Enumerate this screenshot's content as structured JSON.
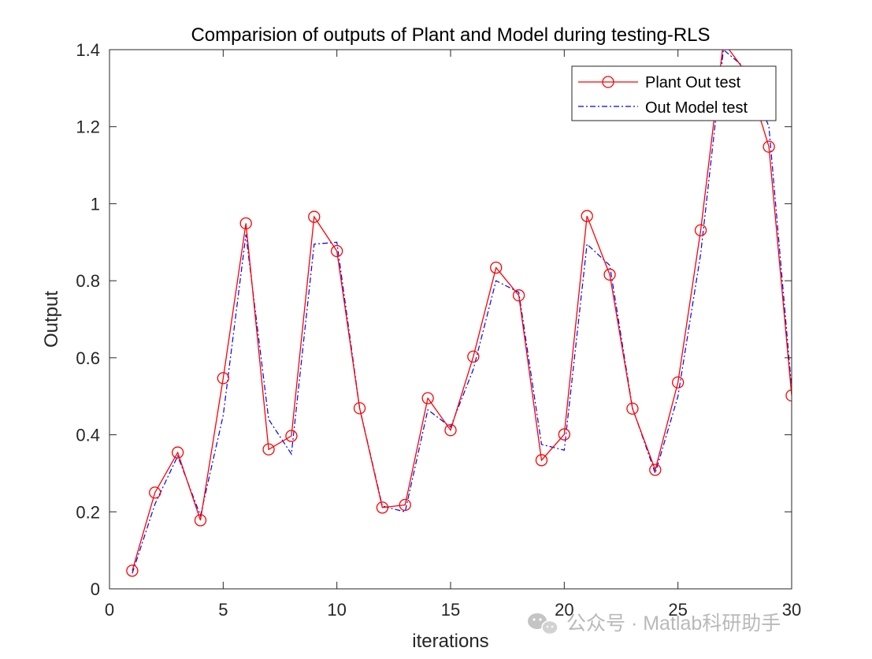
{
  "chart_data": {
    "type": "line",
    "title": "Comparision of outputs of Plant and Model during testing-RLS",
    "xlabel": "iterations",
    "ylabel": "Output",
    "xlim": [
      0,
      30
    ],
    "ylim": [
      0,
      1.4
    ],
    "xticks": [
      0,
      5,
      10,
      15,
      20,
      25,
      30
    ],
    "yticks": [
      0,
      0.2,
      0.4,
      0.6,
      0.8,
      1,
      1.2,
      1.4
    ],
    "xtick_labels": [
      "0",
      "5",
      "10",
      "15",
      "20",
      "25",
      "30"
    ],
    "ytick_labels": [
      "0",
      "0.2",
      "0.4",
      "0.6",
      "0.8",
      "1",
      "1.2",
      "1.4"
    ],
    "grid": false,
    "legend_position": "top-right",
    "x": [
      1,
      2,
      3,
      4,
      5,
      6,
      7,
      8,
      9,
      10,
      11,
      12,
      13,
      14,
      15,
      16,
      17,
      18,
      19,
      20,
      21,
      22,
      23,
      24,
      25,
      26,
      27,
      28,
      29,
      30
    ],
    "series": [
      {
        "name": "Plant Out test",
        "color": "#ff0000",
        "line_style": "solid",
        "marker": "circle",
        "values": [
          0.047,
          0.25,
          0.354,
          0.178,
          0.547,
          0.949,
          0.362,
          0.397,
          0.966,
          0.877,
          0.469,
          0.211,
          0.218,
          0.495,
          0.412,
          0.603,
          0.834,
          0.762,
          0.334,
          0.401,
          0.968,
          0.816,
          0.468,
          0.309,
          0.536,
          0.931,
          1.42,
          1.34,
          1.148,
          0.502
        ]
      },
      {
        "name": "Out Model test",
        "color": "#0000ff",
        "line_style": "dash-dot",
        "marker": "none",
        "values": [
          0.04,
          0.22,
          0.345,
          0.19,
          0.45,
          0.92,
          0.44,
          0.35,
          0.895,
          0.9,
          0.47,
          0.215,
          0.2,
          0.465,
          0.42,
          0.57,
          0.8,
          0.77,
          0.375,
          0.36,
          0.895,
          0.84,
          0.47,
          0.3,
          0.5,
          0.87,
          1.4,
          1.35,
          1.2,
          0.52
        ]
      }
    ]
  },
  "watermark": {
    "text": "公众号 · Matlab科研助手",
    "icon": "wechat-icon"
  }
}
